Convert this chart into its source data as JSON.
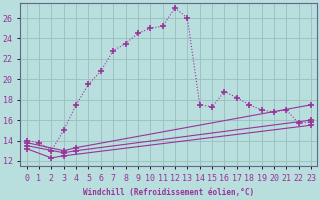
{
  "xlabel": "Windchill (Refroidissement éolien,°C)",
  "background_color": "#b8dede",
  "grid_color": "#9abebe",
  "line_color": "#993399",
  "xlim": [
    -0.5,
    23.5
  ],
  "ylim": [
    11.5,
    27.5
  ],
  "yticks": [
    12,
    14,
    16,
    18,
    20,
    22,
    24,
    26
  ],
  "xticks": [
    0,
    1,
    2,
    3,
    4,
    5,
    6,
    7,
    8,
    9,
    10,
    11,
    12,
    13,
    14,
    15,
    16,
    17,
    18,
    19,
    20,
    21,
    22,
    23
  ],
  "series": [
    {
      "x": [
        0,
        1,
        2,
        3,
        4,
        5,
        6,
        7,
        8,
        9,
        10,
        11,
        12,
        13,
        14,
        15,
        16,
        17,
        18,
        19,
        20,
        21,
        22,
        23
      ],
      "y": [
        14.0,
        13.8,
        13.0,
        15.0,
        17.5,
        19.5,
        20.8,
        22.8,
        23.5,
        24.5,
        25.0,
        25.2,
        27.0,
        26.0,
        17.5,
        17.3,
        18.8,
        18.2,
        17.5,
        17.0,
        16.8,
        17.0,
        15.7,
        15.8
      ],
      "linestyle": "dotted",
      "marker": "+",
      "markersize": 5,
      "markeredgewidth": 1.2
    },
    {
      "x": [
        0,
        3,
        4,
        23
      ],
      "y": [
        13.8,
        13.0,
        13.3,
        17.5
      ],
      "linestyle": "solid",
      "marker": "+",
      "markersize": 5,
      "markeredgewidth": 1.2
    },
    {
      "x": [
        0,
        3,
        4,
        23
      ],
      "y": [
        13.5,
        12.8,
        13.0,
        16.0
      ],
      "linestyle": "solid",
      "marker": "+",
      "markersize": 5,
      "markeredgewidth": 1.2
    },
    {
      "x": [
        0,
        2,
        3,
        23
      ],
      "y": [
        13.2,
        12.3,
        12.5,
        15.5
      ],
      "linestyle": "solid",
      "marker": "+",
      "markersize": 5,
      "markeredgewidth": 1.2
    }
  ]
}
